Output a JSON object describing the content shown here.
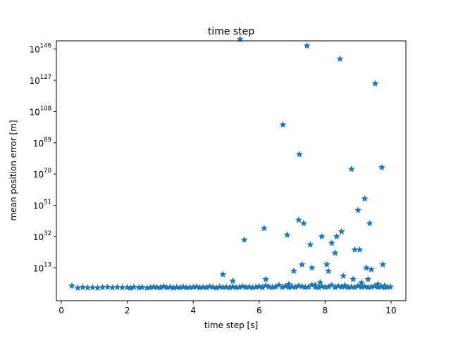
{
  "chart_data": {
    "type": "scatter",
    "title": "time step",
    "xlabel": "time step [s]",
    "ylabel": "mean position error [m]",
    "xlim": [
      -0.15,
      10.45
    ],
    "ylim_log10": [
      -7,
      151
    ],
    "y_scale": "log",
    "x_ticks": [
      0,
      2,
      4,
      6,
      8,
      10
    ],
    "x_tick_labels": [
      "0",
      "2",
      "4",
      "6",
      "8",
      "10"
    ],
    "y_ticks_exp": [
      13,
      32,
      51,
      70,
      89,
      108,
      127,
      146
    ],
    "y_tick_base": "10",
    "y_tick_exponents": [
      "13",
      "32",
      "51",
      "70",
      "89",
      "108",
      "127",
      "146"
    ],
    "marker": "star",
    "color": "#1f77b4",
    "grid": false,
    "series": [
      {
        "points_log10": [
          [
            0.32,
            2.0
          ],
          [
            0.5,
            0.8
          ],
          [
            0.65,
            1.2
          ],
          [
            0.8,
            0.9
          ],
          [
            0.95,
            1.0
          ],
          [
            1.1,
            0.8
          ],
          [
            1.25,
            1.1
          ],
          [
            1.4,
            1.3
          ],
          [
            1.55,
            0.9
          ],
          [
            1.7,
            1.2
          ],
          [
            1.85,
            1.0
          ],
          [
            2.0,
            1.1
          ],
          [
            2.1,
            0.7
          ],
          [
            2.2,
            1.3
          ],
          [
            2.35,
            0.9
          ],
          [
            2.45,
            1.2
          ],
          [
            2.6,
            0.8
          ],
          [
            2.7,
            1.0
          ],
          [
            2.8,
            1.4
          ],
          [
            2.9,
            1.1
          ],
          [
            3.0,
            0.9
          ],
          [
            3.1,
            1.6
          ],
          [
            3.2,
            1.0
          ],
          [
            3.3,
            1.3
          ],
          [
            3.4,
            0.8
          ],
          [
            3.5,
            1.2
          ],
          [
            3.6,
            1.0
          ],
          [
            3.7,
            1.4
          ],
          [
            3.8,
            0.9
          ],
          [
            3.9,
            1.1
          ],
          [
            4.0,
            1.2
          ],
          [
            4.1,
            1.5
          ],
          [
            4.2,
            0.9
          ],
          [
            4.3,
            1.3
          ],
          [
            4.4,
            1.0
          ],
          [
            4.5,
            1.6
          ],
          [
            4.6,
            1.2
          ],
          [
            4.7,
            0.8
          ],
          [
            4.8,
            1.4
          ],
          [
            4.9,
            1.1
          ],
          [
            5.0,
            1.3
          ],
          [
            5.1,
            0.9
          ],
          [
            5.2,
            1.5
          ],
          [
            5.3,
            1.0
          ],
          [
            5.4,
            1.2
          ],
          [
            5.5,
            1.7
          ],
          [
            5.6,
            1.1
          ],
          [
            5.7,
            1.4
          ],
          [
            5.8,
            0.9
          ],
          [
            5.9,
            1.3
          ],
          [
            6.0,
            1.6
          ],
          [
            6.1,
            1.0
          ],
          [
            6.2,
            2.2
          ],
          [
            6.3,
            1.4
          ],
          [
            6.4,
            1.1
          ],
          [
            6.5,
            1.5
          ],
          [
            6.6,
            2.5
          ],
          [
            6.7,
            1.2
          ],
          [
            6.8,
            1.8
          ],
          [
            6.9,
            1.0
          ],
          [
            7.0,
            1.5
          ],
          [
            7.1,
            1.2
          ],
          [
            7.2,
            2.0
          ],
          [
            7.3,
            1.6
          ],
          [
            7.4,
            1.1
          ],
          [
            7.5,
            1.4
          ],
          [
            7.6,
            2.6
          ],
          [
            7.7,
            1.3
          ],
          [
            7.8,
            1.0
          ],
          [
            7.9,
            1.7
          ],
          [
            8.0,
            1.2
          ],
          [
            8.1,
            1.5
          ],
          [
            8.2,
            2.4
          ],
          [
            8.3,
            1.1
          ],
          [
            8.4,
            1.8
          ],
          [
            8.5,
            1.3
          ],
          [
            8.6,
            1.6
          ],
          [
            8.7,
            1.0
          ],
          [
            8.8,
            1.4
          ],
          [
            8.9,
            1.2
          ],
          [
            9.0,
            1.9
          ],
          [
            9.1,
            1.3
          ],
          [
            9.2,
            1.6
          ],
          [
            9.3,
            1.1
          ],
          [
            9.4,
            1.4
          ],
          [
            9.5,
            1.8
          ],
          [
            9.6,
            1.2
          ],
          [
            9.7,
            1.5
          ],
          [
            9.8,
            1.0
          ],
          [
            9.9,
            1.3
          ],
          [
            9.98,
            1.4
          ],
          [
            4.9,
            9
          ],
          [
            5.2,
            5
          ],
          [
            5.55,
            30
          ],
          [
            5.42,
            152
          ],
          [
            6.15,
            37
          ],
          [
            6.2,
            6
          ],
          [
            6.72,
            100
          ],
          [
            6.85,
            33
          ],
          [
            6.9,
            3
          ],
          [
            7.05,
            11
          ],
          [
            7.2,
            42
          ],
          [
            7.22,
            82
          ],
          [
            7.3,
            15
          ],
          [
            7.35,
            40
          ],
          [
            7.45,
            148
          ],
          [
            7.55,
            27
          ],
          [
            7.6,
            13
          ],
          [
            7.7,
            2.5
          ],
          [
            7.85,
            4
          ],
          [
            7.9,
            32
          ],
          [
            8.05,
            15
          ],
          [
            8.1,
            11
          ],
          [
            8.2,
            28
          ],
          [
            8.3,
            22
          ],
          [
            8.35,
            32
          ],
          [
            8.45,
            140
          ],
          [
            8.5,
            35
          ],
          [
            8.55,
            8
          ],
          [
            8.6,
            2.3
          ],
          [
            8.8,
            73
          ],
          [
            8.85,
            6
          ],
          [
            8.9,
            24
          ],
          [
            9.0,
            48
          ],
          [
            9.05,
            24
          ],
          [
            9.1,
            4
          ],
          [
            9.2,
            55
          ],
          [
            9.25,
            13
          ],
          [
            9.3,
            6
          ],
          [
            9.35,
            40
          ],
          [
            9.4,
            12
          ],
          [
            9.52,
            125
          ],
          [
            9.6,
            3
          ],
          [
            9.72,
            74
          ],
          [
            9.75,
            15
          ],
          [
            9.8,
            2
          ]
        ]
      }
    ]
  }
}
